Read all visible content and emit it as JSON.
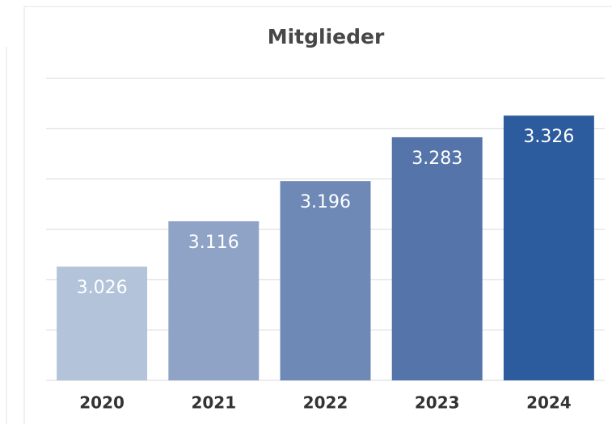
{
  "chart_data": {
    "type": "bar",
    "title": "Mitglieder",
    "categories": [
      "2020",
      "2021",
      "2022",
      "2023",
      "2024"
    ],
    "values": [
      3026,
      3116,
      3196,
      3283,
      3326
    ],
    "value_labels": [
      "3.026",
      "3.116",
      "3.196",
      "3.283",
      "3.326"
    ],
    "colors": [
      "#b3c3da",
      "#8ea3c6",
      "#6f89b7",
      "#5575aa",
      "#2d5c9e"
    ],
    "ylim": [
      2800,
      3400
    ],
    "yticks": [
      2800,
      2900,
      3000,
      3100,
      3200,
      3300,
      3400
    ],
    "grid": true
  }
}
